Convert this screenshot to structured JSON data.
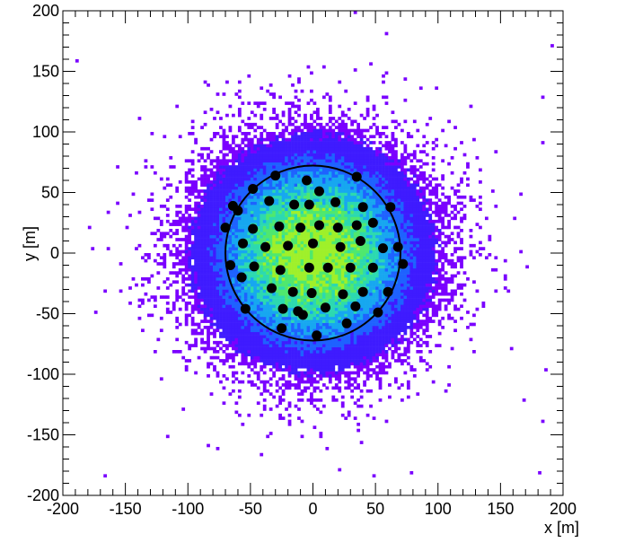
{
  "chart_data": {
    "type": "heatmap",
    "title": "",
    "xlabel": "x [m]",
    "ylabel": "y [m]",
    "xlim": [
      -200,
      200
    ],
    "ylim": [
      -200,
      200
    ],
    "x_ticks": [
      -200,
      -150,
      -100,
      -50,
      0,
      50,
      100,
      150,
      200
    ],
    "y_ticks": [
      -200,
      -150,
      -100,
      -50,
      0,
      50,
      100,
      150,
      200
    ],
    "grid": false,
    "legend": "none",
    "heatmap": {
      "description_free": true,
      "center": [
        0,
        0
      ],
      "spread_sigma_m": 45,
      "colormap": [
        "#7a00ff",
        "#3f1bff",
        "#1e62ff",
        "#17a7f0",
        "#2cd9b0",
        "#4fe86e",
        "#9ff02a"
      ]
    },
    "circle": {
      "center": [
        0,
        0
      ],
      "radius": 70,
      "color": "#000000"
    },
    "points": [
      [
        -30,
        64
      ],
      [
        -5,
        60
      ],
      [
        5,
        51
      ],
      [
        35,
        63
      ],
      [
        -48,
        53
      ],
      [
        -35,
        43
      ],
      [
        -15,
        40
      ],
      [
        -3,
        40
      ],
      [
        18,
        42
      ],
      [
        40,
        38
      ],
      [
        62,
        38
      ],
      [
        -64,
        39
      ],
      [
        -60,
        35
      ],
      [
        -70,
        21
      ],
      [
        -48,
        20
      ],
      [
        -27,
        22
      ],
      [
        -10,
        21
      ],
      [
        5,
        23
      ],
      [
        20,
        21
      ],
      [
        35,
        23
      ],
      [
        48,
        25
      ],
      [
        -56,
        8
      ],
      [
        -38,
        5
      ],
      [
        -20,
        6
      ],
      [
        0,
        8
      ],
      [
        22,
        5
      ],
      [
        38,
        10
      ],
      [
        56,
        4
      ],
      [
        68,
        5
      ],
      [
        -66,
        -10
      ],
      [
        -47,
        -11
      ],
      [
        -26,
        -14
      ],
      [
        -3,
        -12
      ],
      [
        12,
        -12
      ],
      [
        30,
        -12
      ],
      [
        48,
        -12
      ],
      [
        72,
        -9
      ],
      [
        -57,
        -20
      ],
      [
        -33,
        -29
      ],
      [
        -16,
        -32
      ],
      [
        -1,
        -33
      ],
      [
        24,
        -34
      ],
      [
        40,
        -32
      ],
      [
        60,
        -32
      ],
      [
        -54,
        -46
      ],
      [
        -24,
        -46
      ],
      [
        -12,
        -48
      ],
      [
        10,
        -45
      ],
      [
        34,
        -44
      ],
      [
        52,
        -49
      ],
      [
        -25,
        -62
      ],
      [
        3,
        -68
      ],
      [
        27,
        -58
      ],
      [
        -8,
        -51
      ]
    ],
    "point_color": "#000000"
  }
}
